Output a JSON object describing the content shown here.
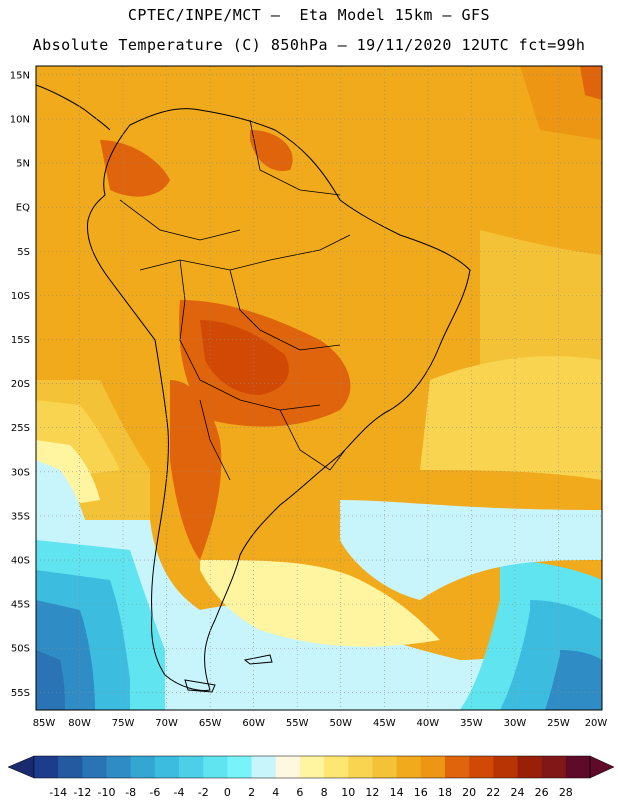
{
  "header": {
    "line1": "CPTEC/INPE/MCT –  Eta Model 15km – GFS",
    "line2": "Absolute Temperature (C) 850hPa – 19/11/2020 12UTC fct=99h"
  },
  "map": {
    "lat_labels": [
      "15N",
      "10N",
      "5N",
      "EQ",
      "5S",
      "10S",
      "15S",
      "20S",
      "25S",
      "30S",
      "35S",
      "40S",
      "45S",
      "50S",
      "55S"
    ],
    "lon_labels": [
      "85W",
      "80W",
      "75W",
      "70W",
      "65W",
      "60W",
      "55W",
      "50W",
      "45W",
      "40W",
      "35W",
      "30W",
      "25W",
      "20W"
    ],
    "lon_range": [
      -85,
      -20
    ],
    "lat_range": [
      -57,
      16
    ]
  },
  "colorbar": {
    "labels": [
      "-14",
      "-12",
      "-10",
      "-8",
      "-6",
      "-4",
      "-2",
      "0",
      "2",
      "4",
      "6",
      "8",
      "10",
      "12",
      "14",
      "16",
      "18",
      "20",
      "22",
      "24",
      "26",
      "28"
    ],
    "colors": [
      "#1e3c8c",
      "#235aa0",
      "#2a73b4",
      "#2f8cc4",
      "#35a5d2",
      "#3cbde0",
      "#4cd0e8",
      "#60e4f0",
      "#78f4f8",
      "#c8f4fc",
      "#fff8e0",
      "#fff4a0",
      "#ffe670",
      "#f8d450",
      "#f4c236",
      "#f0aa1c",
      "#ec9614",
      "#e0640c",
      "#d04a06",
      "#b83404",
      "#982008",
      "#801818",
      "#600a2a"
    ],
    "under_color": "#1a2a70",
    "over_color": "#600a2a"
  }
}
